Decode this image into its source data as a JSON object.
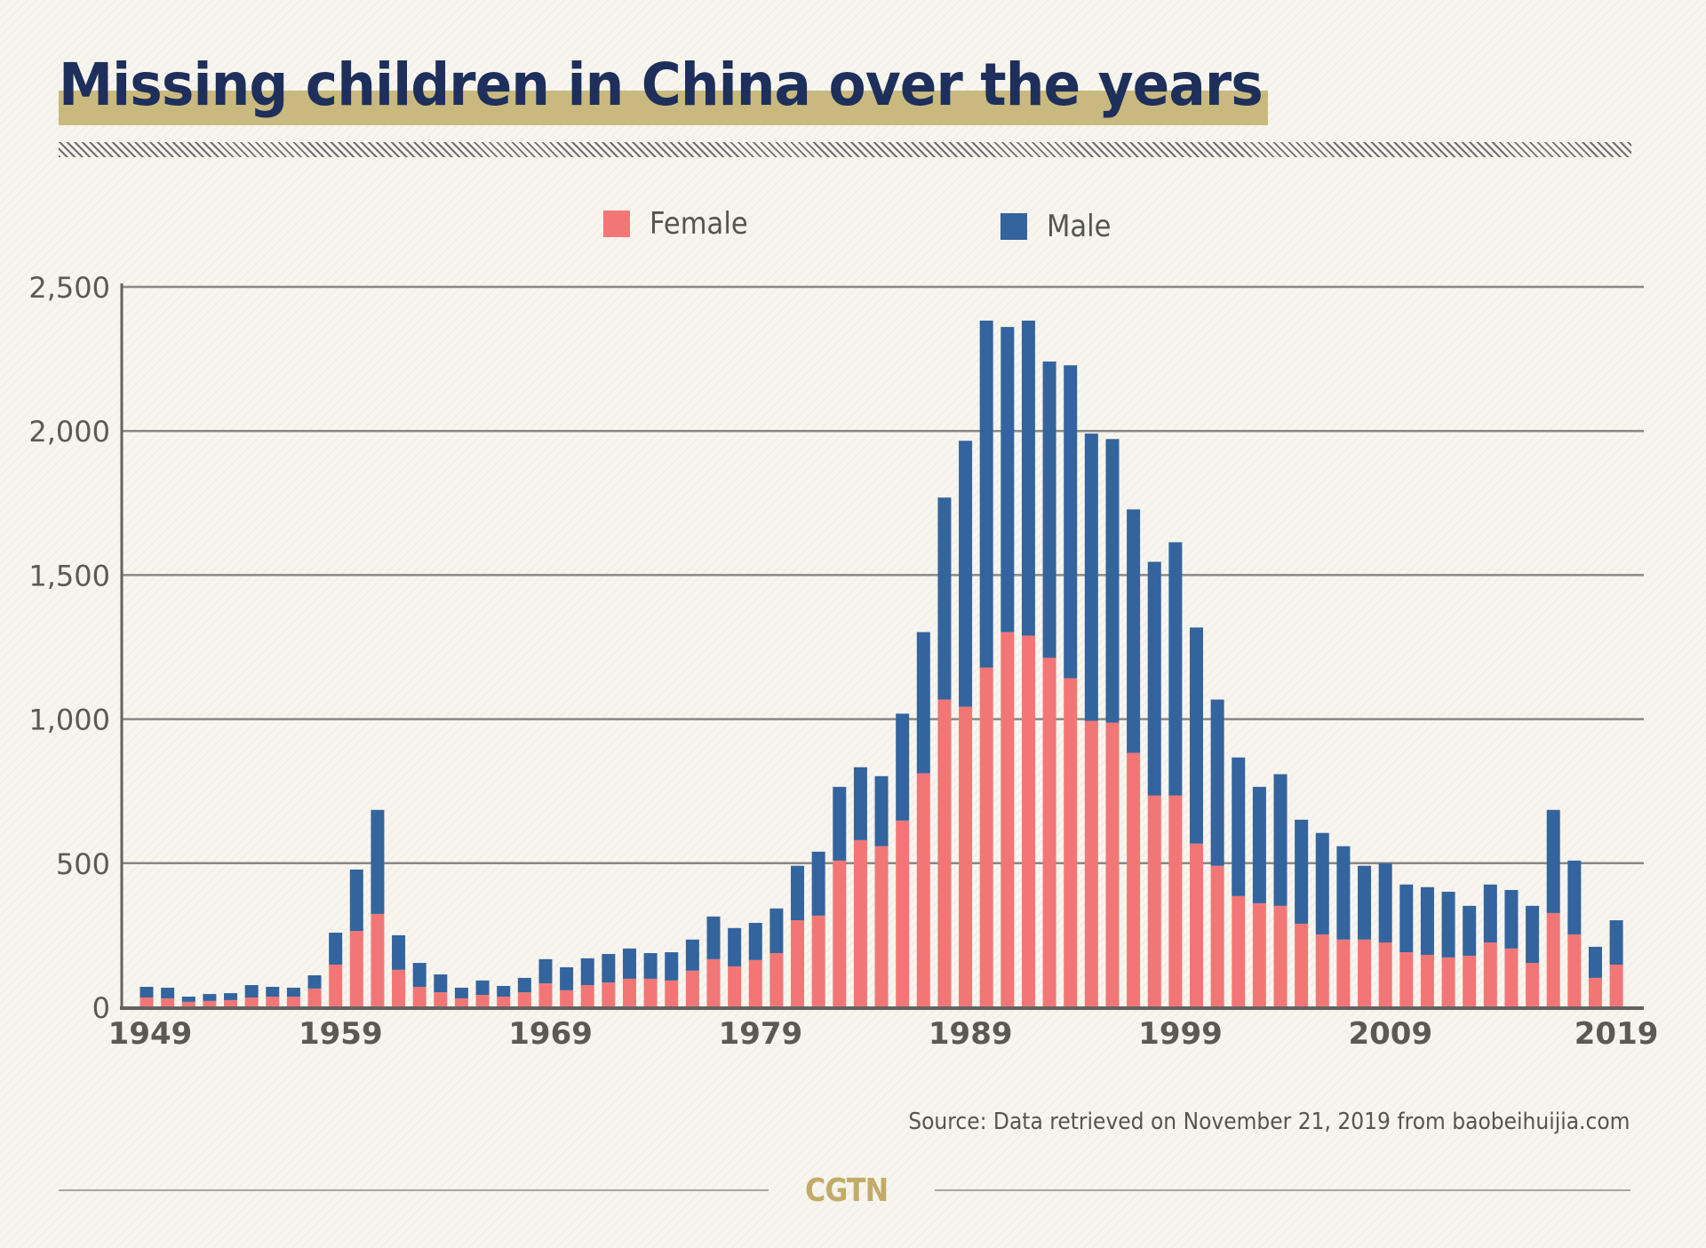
{
  "header": {
    "title": "Missing children in China over the years"
  },
  "legend": [
    {
      "label": "Female",
      "color": "#f37677"
    },
    {
      "label": "Male",
      "color": "#33649e"
    }
  ],
  "source": "Source: Data retrieved on November 21, 2019 from baobeihuijia.com",
  "brand": "CGTN",
  "chart_data": {
    "type": "bar",
    "stacked": true,
    "title": "Missing children in China over the years",
    "xlabel": "",
    "ylabel": "",
    "ylim": [
      0,
      2500
    ],
    "yticks": [
      0,
      500,
      1000,
      1500,
      2000,
      2500
    ],
    "ytick_labels": [
      "0",
      "500",
      "1,000",
      "1,500",
      "2,000",
      "2,500"
    ],
    "xtick_labels": [
      "1949",
      "1959",
      "1969",
      "1979",
      "1989",
      "1999",
      "2009",
      "2019"
    ],
    "grid": true,
    "legend_position": "top-center",
    "categories": [
      1949,
      1950,
      1951,
      1952,
      1953,
      1954,
      1955,
      1956,
      1957,
      1958,
      1959,
      1960,
      1961,
      1962,
      1963,
      1964,
      1965,
      1966,
      1967,
      1968,
      1969,
      1970,
      1971,
      1972,
      1973,
      1974,
      1975,
      1976,
      1977,
      1978,
      1979,
      1980,
      1981,
      1982,
      1983,
      1984,
      1985,
      1986,
      1987,
      1988,
      1989,
      1990,
      1991,
      1992,
      1993,
      1994,
      1995,
      1996,
      1997,
      1998,
      1999,
      2000,
      2001,
      2002,
      2003,
      2004,
      2005,
      2006,
      2007,
      2008,
      2009,
      2010,
      2011,
      2012,
      2013,
      2014,
      2015,
      2016,
      2017,
      2018,
      2019
    ],
    "series": [
      {
        "name": "Female",
        "color": "#f37677",
        "values": [
          34,
          31,
          19,
          22,
          25,
          34,
          37,
          37,
          65,
          148,
          265,
          324,
          130,
          71,
          52,
          31,
          43,
          37,
          52,
          83,
          59,
          77,
          86,
          99,
          99,
          93,
          127,
          167,
          142,
          164,
          188,
          302,
          318,
          509,
          580,
          559,
          648,
          812,
          1068,
          1043,
          1179,
          1302,
          1290,
          1213,
          1142,
          994,
          988,
          883,
          735,
          735,
          568,
          491,
          386,
          361,
          352,
          290,
          253,
          235,
          235,
          225,
          191,
          182,
          173,
          179,
          225,
          204,
          154,
          327,
          253,
          102,
          148
        ]
      },
      {
        "name": "Male",
        "color": "#33649e",
        "values": [
          37,
          37,
          18,
          24,
          24,
          43,
          34,
          31,
          46,
          111,
          213,
          361,
          120,
          83,
          62,
          37,
          50,
          37,
          50,
          84,
          80,
          93,
          99,
          105,
          89,
          98,
          108,
          148,
          133,
          129,
          155,
          189,
          222,
          256,
          253,
          243,
          371,
          490,
          701,
          923,
          1204,
          1059,
          1093,
          1028,
          1086,
          997,
          984,
          845,
          811,
          879,
          750,
          577,
          481,
          404,
          457,
          361,
          352,
          324,
          256,
          275,
          235,
          235,
          228,
          173,
          201,
          203,
          198,
          358,
          256,
          108,
          154
        ]
      }
    ]
  }
}
